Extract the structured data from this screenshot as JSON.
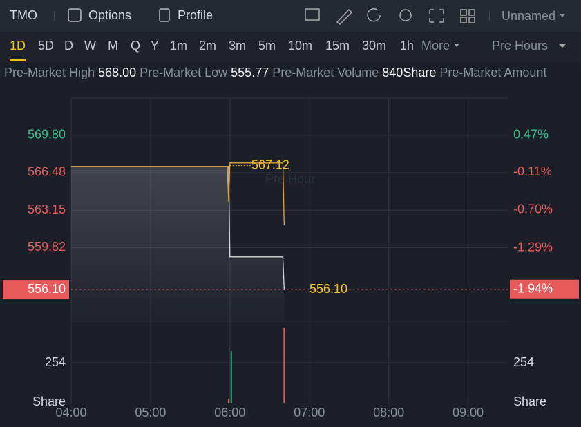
{
  "header": {
    "symbol": "TMO",
    "tabs": [
      "Options",
      "Profile"
    ],
    "layout": "Unnamed"
  },
  "periods": [
    "1D",
    "5D",
    "D",
    "W",
    "M",
    "Q",
    "Y",
    "1m",
    "2m",
    "3m",
    "5m",
    "10m",
    "15m",
    "30m",
    "1h",
    "More"
  ],
  "session": "Pre Hours",
  "stats": [
    {
      "label": "Pre-Market High",
      "value": "568.00"
    },
    {
      "label": "Pre-Market Low",
      "value": "555.77"
    },
    {
      "label": "Pre-Market Volume",
      "value": "840Share"
    },
    {
      "label": "Pre-Market Amount"
    }
  ],
  "chart_data": {
    "type": "line",
    "watermark": "Pre Hour",
    "grid": true,
    "x": [
      "04:00",
      "05:58",
      "05:59",
      "06:00",
      "06:40",
      "06:41"
    ],
    "series": [
      {
        "color": "#d8d8d8",
        "area": true,
        "values": [
          567.04,
          567.04,
          567.04,
          559.0,
          559.0,
          556.1
        ]
      },
      {
        "color": "#e8a33c",
        "values": [
          567.04,
          567.04,
          563.9,
          567.35,
          567.35,
          561.82
        ]
      }
    ],
    "xlim": [
      "04:00",
      "09:30"
    ],
    "xticks": [
      "04:00",
      "05:00",
      "06:00",
      "07:00",
      "08:00",
      "09:00"
    ],
    "ylim": [
      553.28,
      573.11
    ],
    "yticks": [
      {
        "value": 569.8,
        "label": "569.80"
      },
      {
        "value": 566.48,
        "label": "566.48"
      },
      {
        "value": 563.15,
        "label": "563.15"
      },
      {
        "value": 559.82,
        "label": "559.82"
      }
    ],
    "y2lim": [
      -2.44,
      1.05
    ],
    "y2ticks": [
      {
        "value": 0.47,
        "label": "0.47%"
      },
      {
        "value": -0.11,
        "label": "-0.11%"
      },
      {
        "value": -0.7,
        "label": "-0.70%"
      },
      {
        "value": -1.29,
        "label": "-1.29%"
      }
    ],
    "last": {
      "value": 556.1,
      "label": "556.10",
      "pct": {
        "value": -1.94,
        "label": "-1.94%"
      }
    },
    "marker": {
      "value": 567.12,
      "label": "567.12"
    },
    "volume": {
      "x": [
        "05:59",
        "06:01",
        "06:41"
      ],
      "values": [
        26,
        328,
        477
      ],
      "colors": [
        "#e85a5a",
        "#2dbd85",
        "#e85a5a"
      ],
      "ylim": [
        0,
        517
      ],
      "yticks": [
        254
      ],
      "unit": "Share"
    }
  }
}
